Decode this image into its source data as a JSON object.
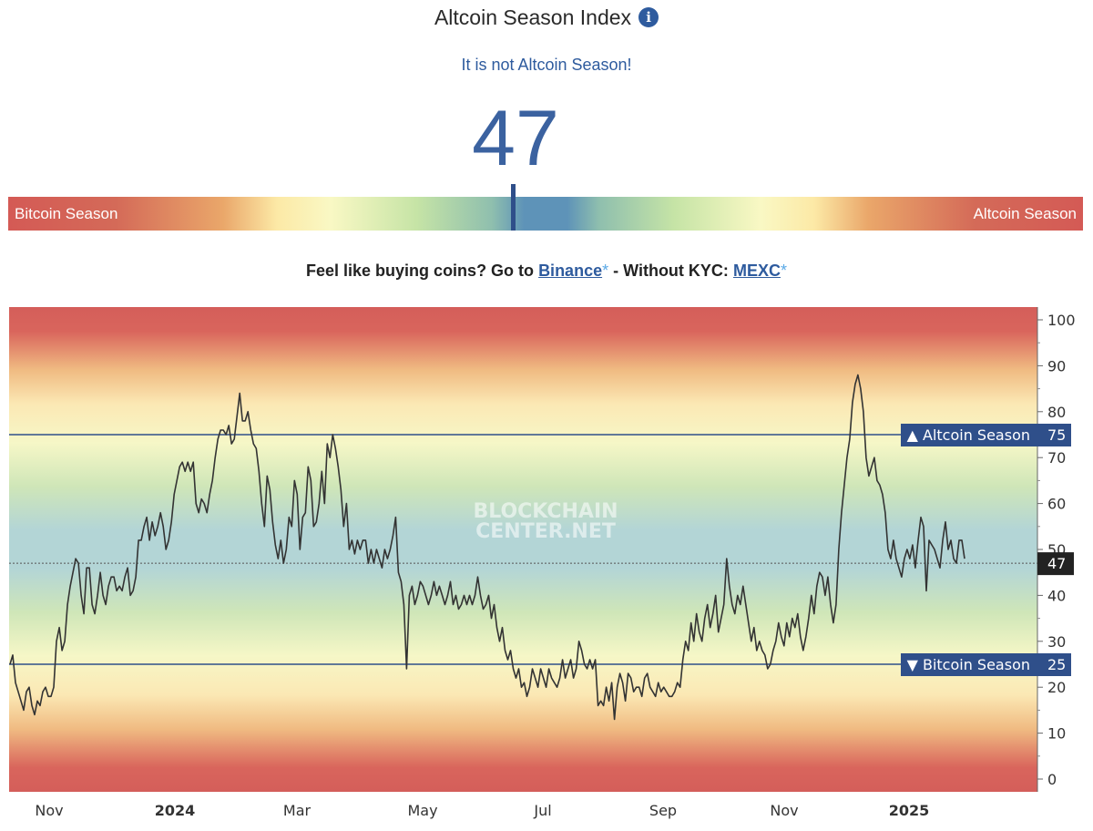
{
  "header": {
    "title": "Altcoin Season Index",
    "info_icon": "info-icon",
    "status": "It is not Altcoin Season!",
    "value": "47"
  },
  "scale_bar": {
    "left_label": "Bitcoin Season",
    "right_label": "Altcoin Season",
    "marker_value": 47
  },
  "promo": {
    "prefix": "Feel like buying coins? Go to",
    "link1": "Binance",
    "star": "*",
    "middle": "- Without KYC:",
    "link2": "MEXC"
  },
  "chart_data": {
    "type": "line",
    "watermark": [
      "BLOCKCHAIN",
      "CENTER.NET"
    ],
    "x_tick_labels": [
      "Nov",
      "2024",
      "Mar",
      "May",
      "Jul",
      "Sep",
      "Nov",
      "2025"
    ],
    "y_ticks": [
      0,
      10,
      20,
      30,
      40,
      50,
      60,
      70,
      80,
      90,
      100
    ],
    "ylim": [
      0,
      100
    ],
    "thresholds": [
      {
        "label": "▲ Altcoin Season",
        "value": 75
      },
      {
        "label": "▼ Bitcoin Season",
        "value": 25
      }
    ],
    "current_value": 47,
    "series": [
      {
        "values": [
          25,
          27,
          21,
          19,
          17,
          15,
          19,
          20,
          16,
          14,
          17,
          16,
          19,
          20,
          18,
          18,
          20,
          30,
          33,
          28,
          30,
          38,
          42,
          45,
          48,
          47,
          40,
          36,
          46,
          46,
          38,
          36,
          40,
          45,
          40,
          38,
          42,
          44,
          44,
          41,
          42,
          41,
          44,
          46,
          40,
          41,
          44,
          52,
          52,
          55,
          57,
          52,
          56,
          53,
          55,
          58,
          55,
          50,
          52,
          56,
          62,
          65,
          68,
          69,
          67,
          69,
          67,
          69,
          60,
          58,
          61,
          60,
          58,
          62,
          65,
          70,
          74,
          76,
          76,
          75,
          77,
          73,
          74,
          79,
          84,
          78,
          78,
          80,
          76,
          73,
          72,
          67,
          60,
          55,
          66,
          63,
          56,
          51,
          48,
          52,
          47,
          50,
          57,
          55,
          65,
          62,
          50,
          57,
          58,
          68,
          65,
          55,
          56,
          60,
          67,
          60,
          73,
          70,
          75,
          72,
          68,
          63,
          55,
          60,
          50,
          52,
          49,
          52,
          50,
          52,
          52,
          47,
          50,
          47,
          50,
          48,
          46,
          50,
          48,
          50,
          53,
          57,
          45,
          43,
          38,
          24,
          40,
          42,
          38,
          40,
          43,
          42,
          40,
          38,
          40,
          43,
          40,
          42,
          40,
          38,
          40,
          43,
          38,
          40,
          37,
          38,
          40,
          38,
          40,
          38,
          40,
          44,
          40,
          37,
          38,
          40,
          35,
          38,
          33,
          30,
          33,
          28,
          26,
          28,
          24,
          22,
          24,
          20,
          21,
          18,
          20,
          24,
          22,
          20,
          24,
          22,
          20,
          24,
          22,
          21,
          20,
          22,
          26,
          22,
          24,
          26,
          22,
          24,
          30,
          28,
          25,
          24,
          26,
          24,
          26,
          16,
          17,
          16,
          20,
          17,
          21,
          13,
          20,
          23,
          21,
          17,
          23,
          22,
          19,
          20,
          20,
          18,
          22,
          23,
          20,
          19,
          18,
          21,
          19,
          20,
          19,
          18,
          18,
          19,
          21,
          20,
          26,
          30,
          28,
          34,
          30,
          36,
          32,
          30,
          35,
          38,
          33,
          36,
          40,
          32,
          35,
          38,
          48,
          42,
          38,
          36,
          40,
          38,
          42,
          38,
          34,
          30,
          33,
          28,
          30,
          28,
          27,
          24,
          25,
          28,
          30,
          34,
          31,
          29,
          34,
          31,
          35,
          33,
          36,
          31,
          28,
          31,
          35,
          40,
          36,
          42,
          45,
          44,
          40,
          44,
          38,
          34,
          38,
          50,
          58,
          64,
          70,
          74,
          82,
          86,
          88,
          85,
          80,
          70,
          66,
          68,
          70,
          65,
          64,
          62,
          58,
          50,
          48,
          52,
          48,
          46,
          44,
          48,
          50,
          48,
          51,
          46,
          52,
          57,
          55,
          41,
          52,
          51,
          50,
          48,
          46,
          52,
          56,
          50,
          52,
          48,
          47,
          52,
          52,
          48
        ],
        "color": "#333333"
      }
    ]
  }
}
